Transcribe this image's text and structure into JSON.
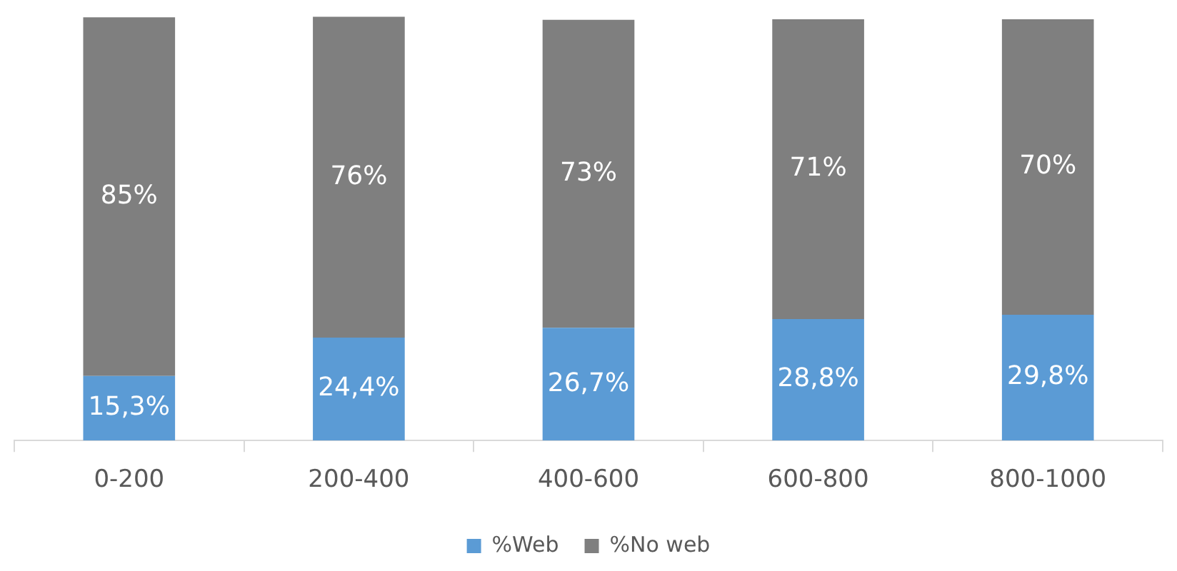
{
  "chart_data": {
    "type": "bar",
    "stacked": true,
    "categories": [
      "0-200",
      "200-400",
      "400-600",
      "600-800",
      "800-1000"
    ],
    "ylim": [
      0,
      101
    ],
    "legend": "bottom",
    "series": [
      {
        "name": "%Web",
        "color": "#5b9bd5",
        "values": [
          15.3,
          24.4,
          26.7,
          28.8,
          29.8
        ],
        "value_labels": [
          "15,3%",
          "24,4%",
          "26,7%",
          "28,8%",
          "29,8%"
        ]
      },
      {
        "name": "%No web",
        "color": "#7f7f7f",
        "values": [
          85,
          76,
          73,
          71,
          70
        ],
        "value_labels": [
          "85%",
          "76%",
          "73%",
          "71%",
          "70%"
        ]
      }
    ]
  }
}
